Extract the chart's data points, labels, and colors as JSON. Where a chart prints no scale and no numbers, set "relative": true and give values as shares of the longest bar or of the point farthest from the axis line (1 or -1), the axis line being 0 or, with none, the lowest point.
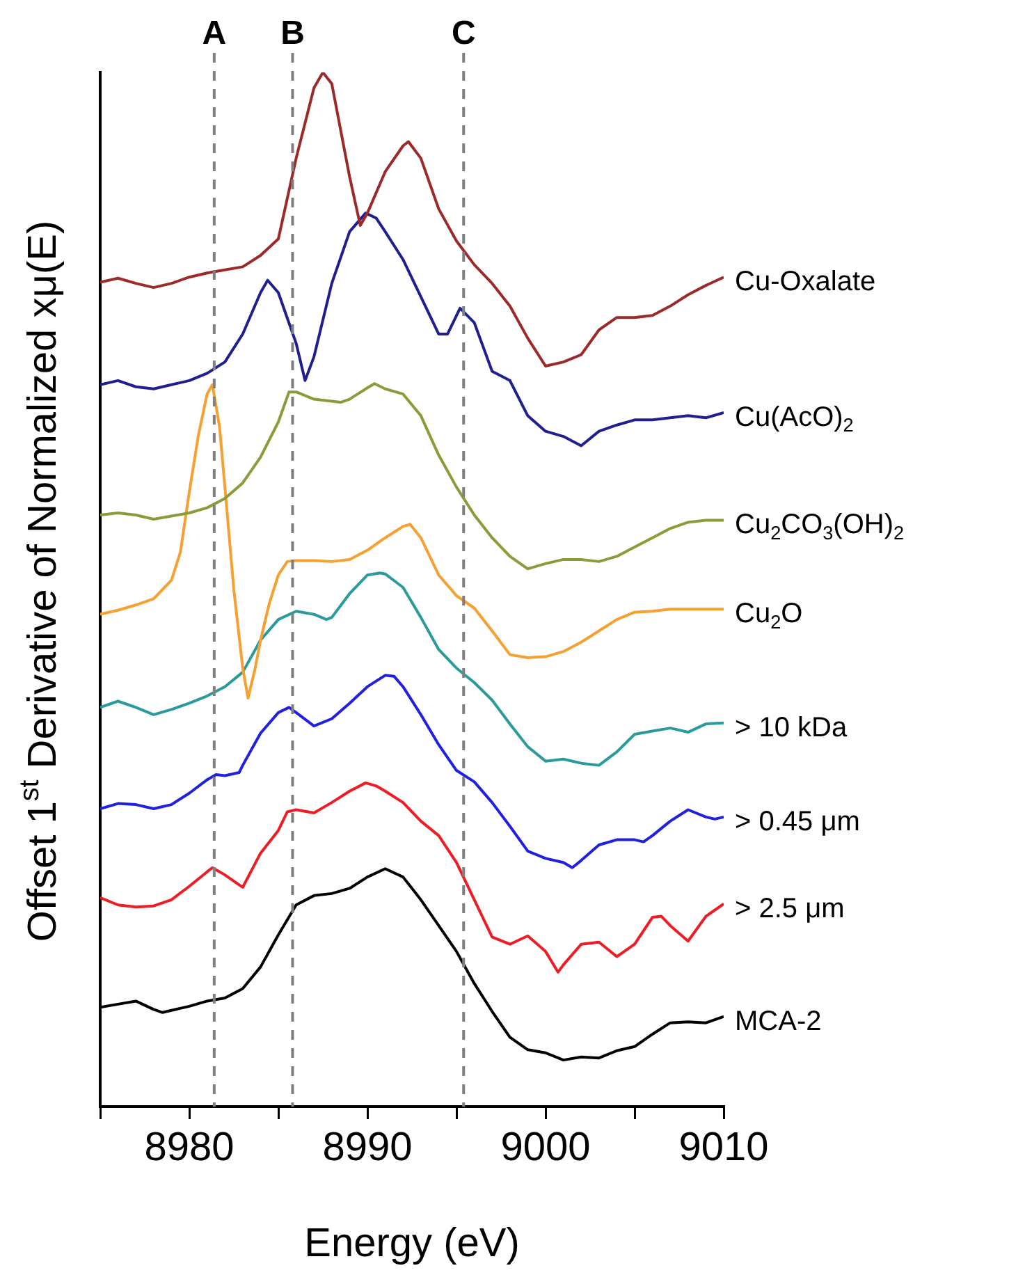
{
  "chart_data": {
    "type": "line",
    "relative": true,
    "xlabel": "Energy (eV)",
    "ylabel": "Offset 1$^{st}$ Derivative of Normalized xμ(E)",
    "xlim": [
      8975,
      9010
    ],
    "xticks": [
      {
        "value": 8975,
        "label": null
      },
      8980,
      {
        "value": 8985,
        "label": null
      },
      8990,
      {
        "value": 8995,
        "label": null
      },
      9000,
      {
        "value": 9005,
        "label": null
      },
      9010
    ],
    "tick_labels": "x",
    "grid": false,
    "legend": false,
    "marker": "none",
    "ref_lines": [
      {
        "axis": "x",
        "value": 8981.4,
        "label": "A",
        "color": "#808080",
        "line_style": "dashed"
      },
      {
        "axis": "x",
        "value": 8985.8,
        "label": "B",
        "color": "#808080",
        "line_style": "dashed"
      },
      {
        "axis": "x",
        "value": 8995.4,
        "label": "C",
        "color": "#808080",
        "line_style": "dashed"
      }
    ],
    "series": [
      {
        "name": "Cu-Oxalate",
        "color": "#9b2a2a",
        "x": [
          8975,
          8976,
          8977,
          8978,
          8979,
          8980,
          8981,
          8982,
          8983,
          8984,
          8985,
          8986,
          8987,
          8987.5,
          8988,
          8989,
          8989.6,
          8990,
          8991,
          8992,
          8992.3,
          8993,
          8994,
          8995,
          8996,
          8997,
          8998,
          8999,
          9000,
          9001,
          9002,
          9003,
          9004,
          9005,
          9006,
          9007,
          9008,
          9009,
          9010
        ],
        "values": [
          0.797,
          0.801,
          0.796,
          0.792,
          0.796,
          0.802,
          0.806,
          0.809,
          0.812,
          0.823,
          0.839,
          0.917,
          0.985,
          1.0,
          0.989,
          0.899,
          0.852,
          0.864,
          0.904,
          0.929,
          0.933,
          0.917,
          0.868,
          0.837,
          0.814,
          0.796,
          0.774,
          0.743,
          0.716,
          0.72,
          0.727,
          0.751,
          0.763,
          0.763,
          0.765,
          0.774,
          0.785,
          0.794,
          0.802
        ]
      },
      {
        "name": "Cu(AcO)$_{2}$",
        "color": "#1f1f8f",
        "x": [
          8975,
          8976,
          8977,
          8978,
          8979,
          8980,
          8981,
          8982,
          8983,
          8984,
          8984.4,
          8985,
          8986,
          8986.5,
          8987,
          8988,
          8989,
          8989.9,
          8990.5,
          8991,
          8992,
          8993,
          8994,
          8994.5,
          8995.2,
          8996,
          8997,
          8998,
          8999,
          9000,
          9001,
          9002,
          9003,
          9004,
          9005,
          9006,
          9007,
          9008,
          9009,
          9010
        ],
        "values": [
          0.698,
          0.702,
          0.696,
          0.694,
          0.698,
          0.702,
          0.709,
          0.72,
          0.747,
          0.787,
          0.799,
          0.787,
          0.738,
          0.702,
          0.725,
          0.796,
          0.846,
          0.864,
          0.859,
          0.846,
          0.819,
          0.783,
          0.747,
          0.747,
          0.772,
          0.758,
          0.711,
          0.702,
          0.668,
          0.653,
          0.648,
          0.639,
          0.653,
          0.659,
          0.664,
          0.664,
          0.666,
          0.668,
          0.666,
          0.671
        ]
      },
      {
        "name": "Cu$_{2}$CO$_{3}$(OH)$_{2}$",
        "color": "#8c9a3a",
        "x": [
          8975,
          8976,
          8977,
          8978,
          8979,
          8980,
          8981,
          8982,
          8983,
          8984,
          8985,
          8985.6,
          8986,
          8987,
          8988,
          8988.5,
          8989,
          8990,
          8990.4,
          8991,
          8992,
          8993,
          8994,
          8995,
          8996,
          8997,
          8998,
          8999,
          9000,
          9001,
          9002,
          9003,
          9004,
          9005,
          9006,
          9007,
          9008,
          9009,
          9010
        ],
        "values": [
          0.572,
          0.574,
          0.572,
          0.568,
          0.571,
          0.574,
          0.579,
          0.588,
          0.603,
          0.628,
          0.662,
          0.691,
          0.691,
          0.684,
          0.682,
          0.681,
          0.684,
          0.695,
          0.699,
          0.694,
          0.689,
          0.668,
          0.63,
          0.599,
          0.572,
          0.55,
          0.532,
          0.52,
          0.525,
          0.529,
          0.529,
          0.527,
          0.532,
          0.541,
          0.55,
          0.559,
          0.565,
          0.567,
          0.567
        ]
      },
      {
        "name": "Cu$_{2}$O",
        "color": "#f5a030",
        "x": [
          8975,
          8976,
          8977,
          8978,
          8979,
          8979.5,
          8980,
          8980.5,
          8981,
          8981.3,
          8981.7,
          8982,
          8982.5,
          8983,
          8983.3,
          8983.7,
          8984,
          8984.5,
          8985,
          8985.5,
          8986,
          8987,
          8988,
          8989,
          8990,
          8991,
          8992,
          8992.4,
          8993,
          8994,
          8995,
          8996,
          8997,
          8998,
          8999,
          9000,
          9001,
          9002,
          9003,
          9004,
          9005,
          9006,
          9007,
          9008,
          9009,
          9010
        ],
        "values": [
          0.476,
          0.48,
          0.485,
          0.491,
          0.509,
          0.536,
          0.594,
          0.648,
          0.689,
          0.698,
          0.657,
          0.599,
          0.5,
          0.424,
          0.395,
          0.424,
          0.451,
          0.487,
          0.514,
          0.527,
          0.528,
          0.528,
          0.527,
          0.529,
          0.538,
          0.55,
          0.561,
          0.563,
          0.55,
          0.514,
          0.494,
          0.482,
          0.46,
          0.437,
          0.434,
          0.435,
          0.44,
          0.449,
          0.46,
          0.471,
          0.478,
          0.479,
          0.481,
          0.481,
          0.481,
          0.481
        ]
      },
      {
        "name": "> 10 kDa",
        "color": "#2a9a9a",
        "x": [
          8975,
          8976,
          8977,
          8978,
          8979,
          8980,
          8981,
          8982,
          8983,
          8984,
          8985,
          8986,
          8987,
          8987.7,
          8988,
          8989,
          8990,
          8990.7,
          8991,
          8992,
          8993,
          8994,
          8995,
          8996,
          8997,
          8998,
          8999,
          9000,
          9001,
          9002,
          9003,
          9004,
          9005,
          9006,
          9007,
          9008,
          9009,
          9010
        ],
        "values": [
          0.386,
          0.392,
          0.386,
          0.379,
          0.384,
          0.39,
          0.397,
          0.406,
          0.42,
          0.451,
          0.471,
          0.479,
          0.476,
          0.471,
          0.473,
          0.496,
          0.514,
          0.516,
          0.515,
          0.502,
          0.473,
          0.442,
          0.424,
          0.41,
          0.393,
          0.37,
          0.348,
          0.334,
          0.336,
          0.332,
          0.33,
          0.343,
          0.36,
          0.363,
          0.366,
          0.362,
          0.37,
          0.371
        ]
      },
      {
        "name": "> 0.45 μm",
        "color": "#2020e0",
        "x": [
          8975,
          8976,
          8977,
          8978,
          8979,
          8980,
          8981,
          8981.5,
          8982,
          8982.8,
          8983,
          8984,
          8985,
          8985.6,
          8986,
          8987,
          8988,
          8989,
          8990,
          8991,
          8991.5,
          8992,
          8993,
          8994,
          8995,
          8996,
          8997,
          8998,
          8999,
          9000,
          9001,
          9001.5,
          9002,
          9003,
          9004,
          9005,
          9005.5,
          9006,
          9007,
          9008,
          9009,
          9009.5,
          9010
        ],
        "values": [
          0.288,
          0.293,
          0.292,
          0.288,
          0.292,
          0.303,
          0.316,
          0.321,
          0.32,
          0.323,
          0.33,
          0.361,
          0.381,
          0.386,
          0.381,
          0.368,
          0.375,
          0.39,
          0.406,
          0.417,
          0.416,
          0.406,
          0.379,
          0.35,
          0.325,
          0.314,
          0.294,
          0.271,
          0.247,
          0.24,
          0.236,
          0.231,
          0.238,
          0.253,
          0.258,
          0.258,
          0.256,
          0.262,
          0.276,
          0.287,
          0.28,
          0.278,
          0.28
        ]
      },
      {
        "name": "> 2.5 μm",
        "color": "#ee1c24",
        "x": [
          8975,
          8976,
          8977,
          8978,
          8979,
          8980,
          8981,
          8981.3,
          8982,
          8983,
          8984,
          8985,
          8985.5,
          8986,
          8987,
          8988,
          8989,
          8989.9,
          8990.5,
          8991,
          8992,
          8993,
          8994,
          8995,
          8996,
          8997,
          8998,
          8999,
          9000,
          9000.7,
          9001,
          9002,
          9003,
          9004,
          9005,
          9006,
          9006.5,
          9007,
          9008,
          9009,
          9010
        ],
        "values": [
          0.202,
          0.195,
          0.193,
          0.194,
          0.2,
          0.213,
          0.227,
          0.231,
          0.224,
          0.212,
          0.245,
          0.267,
          0.285,
          0.287,
          0.284,
          0.294,
          0.305,
          0.313,
          0.31,
          0.305,
          0.294,
          0.276,
          0.262,
          0.236,
          0.2,
          0.164,
          0.157,
          0.165,
          0.15,
          0.13,
          0.137,
          0.157,
          0.159,
          0.145,
          0.157,
          0.183,
          0.184,
          0.175,
          0.16,
          0.184,
          0.196
        ]
      },
      {
        "name": "MCA-2",
        "color": "#000000",
        "x": [
          8975,
          8976,
          8977,
          8978,
          8978.5,
          8979,
          8980,
          8981,
          8982,
          8983,
          8984,
          8985,
          8986,
          8987,
          8988,
          8989,
          8990,
          8991,
          8992,
          8993,
          8994,
          8995,
          8996,
          8997,
          8998,
          8999,
          9000,
          9001,
          9002,
          9003,
          9004,
          9005,
          9006,
          9007,
          9008,
          9009,
          9010
        ],
        "values": [
          0.096,
          0.099,
          0.102,
          0.094,
          0.091,
          0.093,
          0.097,
          0.102,
          0.105,
          0.114,
          0.135,
          0.166,
          0.195,
          0.204,
          0.206,
          0.211,
          0.222,
          0.23,
          0.222,
          0.2,
          0.175,
          0.15,
          0.119,
          0.092,
          0.067,
          0.055,
          0.052,
          0.045,
          0.048,
          0.047,
          0.054,
          0.058,
          0.07,
          0.081,
          0.082,
          0.081,
          0.087
        ]
      }
    ]
  }
}
